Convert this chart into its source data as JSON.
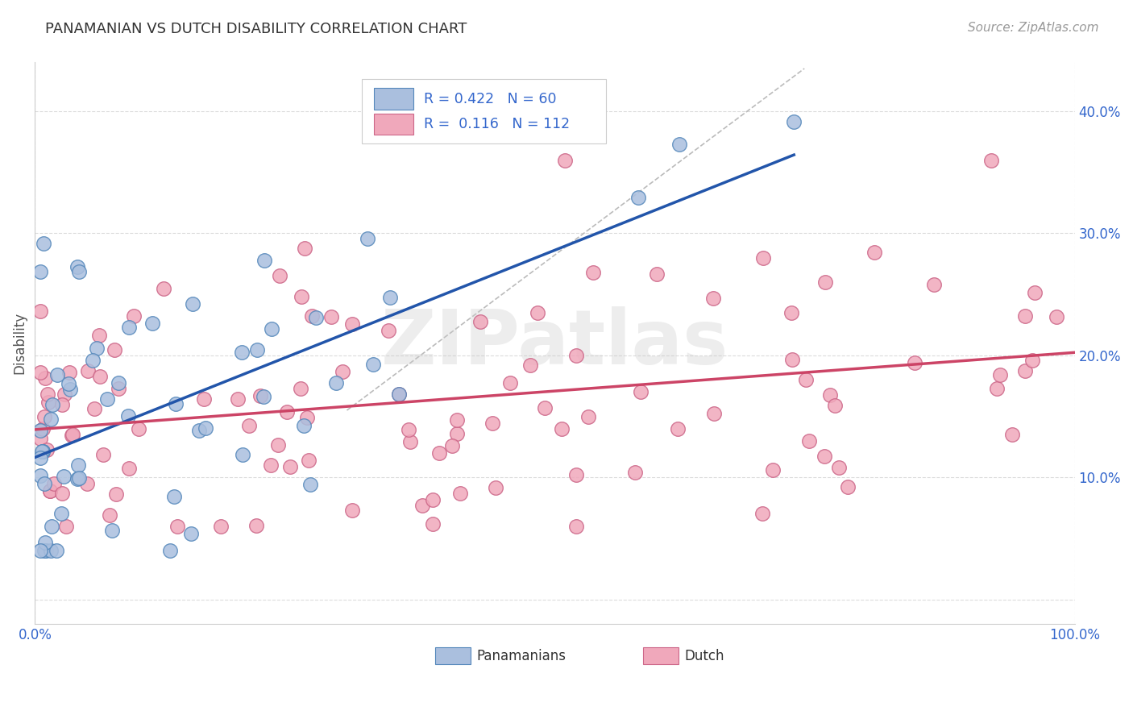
{
  "title": "PANAMANIAN VS DUTCH DISABILITY CORRELATION CHART",
  "source": "Source: ZipAtlas.com",
  "ylabel": "Disability",
  "xlim": [
    0.0,
    1.0
  ],
  "ylim": [
    -0.02,
    0.44
  ],
  "panamanian_color": "#AABFDE",
  "dutch_color": "#F0A8BB",
  "panamanian_edge_color": "#5588BB",
  "dutch_edge_color": "#CC6688",
  "panamanian_line_color": "#2255AA",
  "dutch_line_color": "#CC4466",
  "R_pan": 0.422,
  "N_pan": 60,
  "R_dutch": 0.116,
  "N_dutch": 112,
  "legend_label_pan": "Panamanians",
  "legend_label_dutch": "Dutch",
  "watermark_text": "ZIPatlas",
  "axis_label_color": "#3366CC",
  "tick_fontsize": 12,
  "title_fontsize": 13,
  "source_fontsize": 11,
  "grid_color": "#CCCCCC",
  "scatter_size": 160,
  "scatter_alpha": 0.85
}
